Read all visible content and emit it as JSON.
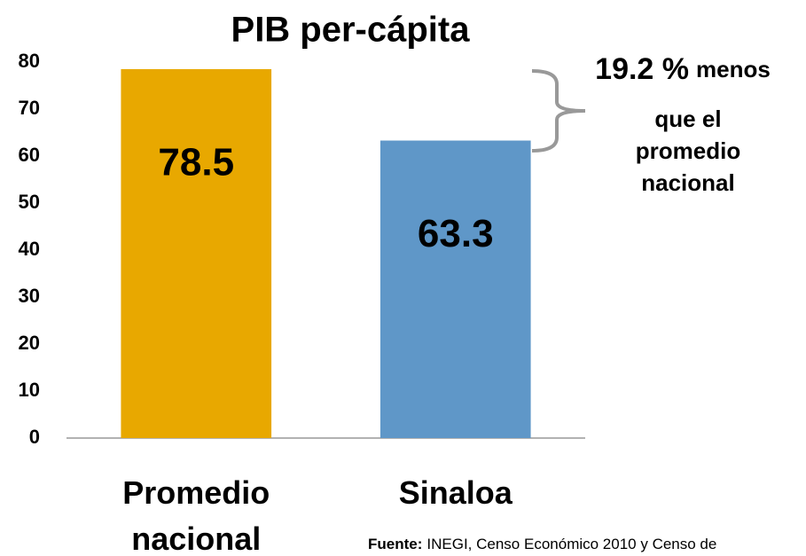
{
  "chart_data": {
    "type": "bar",
    "title": "PIB per-cápita",
    "categories": [
      "Promedio nacional",
      "Sinaloa"
    ],
    "values": [
      78.5,
      63.3
    ],
    "colors": [
      "#e8a800",
      "#5f97c8"
    ],
    "ylim": [
      0,
      80
    ],
    "yticks": [
      0,
      10,
      20,
      30,
      40,
      50,
      60,
      70,
      80
    ],
    "grid": false,
    "annotation": {
      "highlight": "19.2 %",
      "lines": [
        "menos",
        "que el",
        "promedio",
        "nacional"
      ]
    },
    "source": {
      "label": "Fuente:",
      "text": "INEGI, Censo Económico 2010 y Censo de"
    }
  }
}
